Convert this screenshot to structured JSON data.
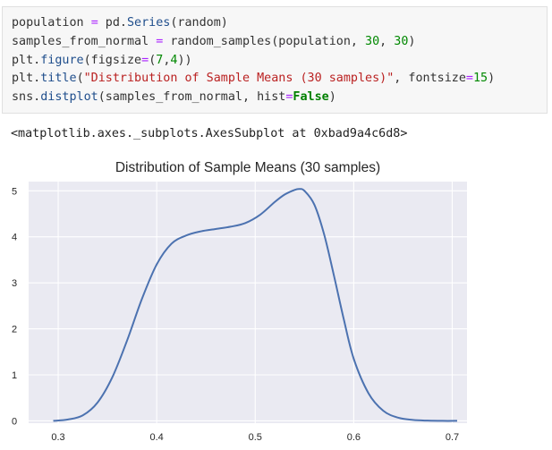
{
  "cell": {
    "lines": [
      [
        {
          "t": "population ",
          "c": ""
        },
        {
          "t": "=",
          "c": "op"
        },
        {
          "t": " pd.",
          "c": ""
        },
        {
          "t": "Series",
          "c": "fn"
        },
        {
          "t": "(random)",
          "c": ""
        }
      ],
      [
        {
          "t": "samples_from_normal ",
          "c": ""
        },
        {
          "t": "=",
          "c": "op"
        },
        {
          "t": " random_samples(population, ",
          "c": ""
        },
        {
          "t": "30",
          "c": "num"
        },
        {
          "t": ", ",
          "c": ""
        },
        {
          "t": "30",
          "c": "num"
        },
        {
          "t": ")",
          "c": ""
        }
      ],
      [
        {
          "t": "plt.",
          "c": ""
        },
        {
          "t": "figure",
          "c": "fn"
        },
        {
          "t": "(figsize",
          "c": ""
        },
        {
          "t": "=",
          "c": "op"
        },
        {
          "t": "(",
          "c": ""
        },
        {
          "t": "7",
          "c": "num"
        },
        {
          "t": ",",
          "c": ""
        },
        {
          "t": "4",
          "c": "num"
        },
        {
          "t": "))",
          "c": ""
        }
      ],
      [
        {
          "t": "plt.",
          "c": ""
        },
        {
          "t": "title",
          "c": "fn"
        },
        {
          "t": "(",
          "c": ""
        },
        {
          "t": "\"Distribution of Sample Means (30 samples)\"",
          "c": "str"
        },
        {
          "t": ", fontsize",
          "c": ""
        },
        {
          "t": "=",
          "c": "op"
        },
        {
          "t": "15",
          "c": "num"
        },
        {
          "t": ")",
          "c": ""
        }
      ],
      [
        {
          "t": "sns.",
          "c": ""
        },
        {
          "t": "distplot",
          "c": "fn"
        },
        {
          "t": "(samples_from_normal, hist",
          "c": ""
        },
        {
          "t": "=",
          "c": "op"
        },
        {
          "t": "False",
          "c": "kw"
        },
        {
          "t": ")",
          "c": ""
        }
      ]
    ]
  },
  "output_text": "<matplotlib.axes._subplots.AxesSubplot at 0xbad9a4c6d8>",
  "chart_data": {
    "type": "line",
    "title": "Distribution of Sample Means (30 samples)",
    "xlabel": "",
    "ylabel": "",
    "xlim": [
      0.27,
      0.715
    ],
    "ylim": [
      -0.05,
      5.2
    ],
    "xticks": [
      0.3,
      0.4,
      0.5,
      0.6,
      0.7
    ],
    "xtick_labels": [
      "0.3",
      "0.4",
      "0.5",
      "0.6",
      "0.7"
    ],
    "yticks": [
      0,
      1,
      2,
      3,
      4,
      5
    ],
    "ytick_labels": [
      "0",
      "1",
      "2",
      "3",
      "4",
      "5"
    ],
    "grid": true,
    "background": "#eaeaf2",
    "line_color": "#4c72b0",
    "x": [
      0.295,
      0.31,
      0.325,
      0.34,
      0.355,
      0.37,
      0.385,
      0.4,
      0.415,
      0.43,
      0.445,
      0.46,
      0.475,
      0.49,
      0.505,
      0.52,
      0.53,
      0.54,
      0.545,
      0.55,
      0.56,
      0.57,
      0.58,
      0.59,
      0.6,
      0.615,
      0.63,
      0.645,
      0.66,
      0.675,
      0.69,
      0.705
    ],
    "y": [
      0.0,
      0.03,
      0.12,
      0.4,
      0.95,
      1.75,
      2.65,
      3.4,
      3.85,
      4.03,
      4.12,
      4.17,
      4.22,
      4.3,
      4.48,
      4.76,
      4.92,
      5.02,
      5.04,
      5.0,
      4.7,
      4.05,
      3.15,
      2.2,
      1.35,
      0.6,
      0.22,
      0.07,
      0.02,
      0.005,
      0.0,
      0.0
    ]
  }
}
